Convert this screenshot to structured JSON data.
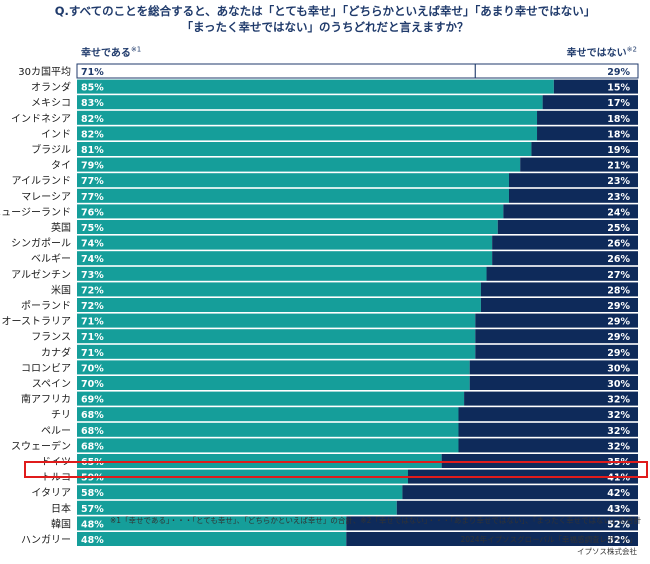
{
  "title": {
    "line1": "Q.すべてのことを総合すると、あなたは「とても幸せ」「どちらかといえば幸せ」「あまり幸せではない」",
    "line2": "「まったく幸せではない」のうちどれだと言えますか？"
  },
  "legend": {
    "happy": "幸せである",
    "happy_note": "※1",
    "unhappy": "幸せではない",
    "unhappy_note": "※2"
  },
  "footnote": "※1「幸せである」・・・「とても幸せ」、「どちらかといえば幸せ」の合計、※2「幸せではない」・・・「あまり幸せではない」、「まったく幸せではない」の合計",
  "source": "2024年イプソスグローバル「幸福感調査レポート」",
  "publisher": "イプソス株式会社",
  "highlighted_category": "日本",
  "colors": {
    "happy": "#159e9a",
    "unhappy": "#0e2a5a",
    "average_happy": "#ffffff",
    "average_unhappy": "#ffffff",
    "highlight": "#e01b1b"
  },
  "chart_data": {
    "type": "bar",
    "orientation": "horizontal-stacked-100",
    "categories": [
      "30カ国平均",
      "オランダ",
      "メキシコ",
      "インドネシア",
      "インド",
      "ブラジル",
      "タイ",
      "アイルランド",
      "マレーシア",
      "ニュージーランド",
      "英国",
      "シンガポール",
      "ベルギー",
      "アルゼンチン",
      "米国",
      "ポーランド",
      "オーストラリア",
      "フランス",
      "カナダ",
      "コロンビア",
      "スペイン",
      "南アフリカ",
      "チリ",
      "ペルー",
      "スウェーデン",
      "ドイツ",
      "トルコ",
      "イタリア",
      "日本",
      "韓国",
      "ハンガリー"
    ],
    "series": [
      {
        "name": "幸せである",
        "values": [
          71,
          85,
          83,
          82,
          82,
          81,
          79,
          77,
          77,
          76,
          75,
          74,
          74,
          73,
          72,
          72,
          71,
          71,
          71,
          70,
          70,
          69,
          68,
          68,
          68,
          65,
          59,
          58,
          57,
          48,
          48
        ]
      },
      {
        "name": "幸せではない",
        "values": [
          29,
          15,
          17,
          18,
          18,
          19,
          21,
          23,
          23,
          24,
          25,
          26,
          26,
          27,
          28,
          29,
          29,
          29,
          29,
          30,
          30,
          32,
          32,
          32,
          32,
          35,
          41,
          42,
          43,
          52,
          52
        ]
      }
    ],
    "value_suffix": "%",
    "xlim": [
      0,
      100
    ]
  }
}
